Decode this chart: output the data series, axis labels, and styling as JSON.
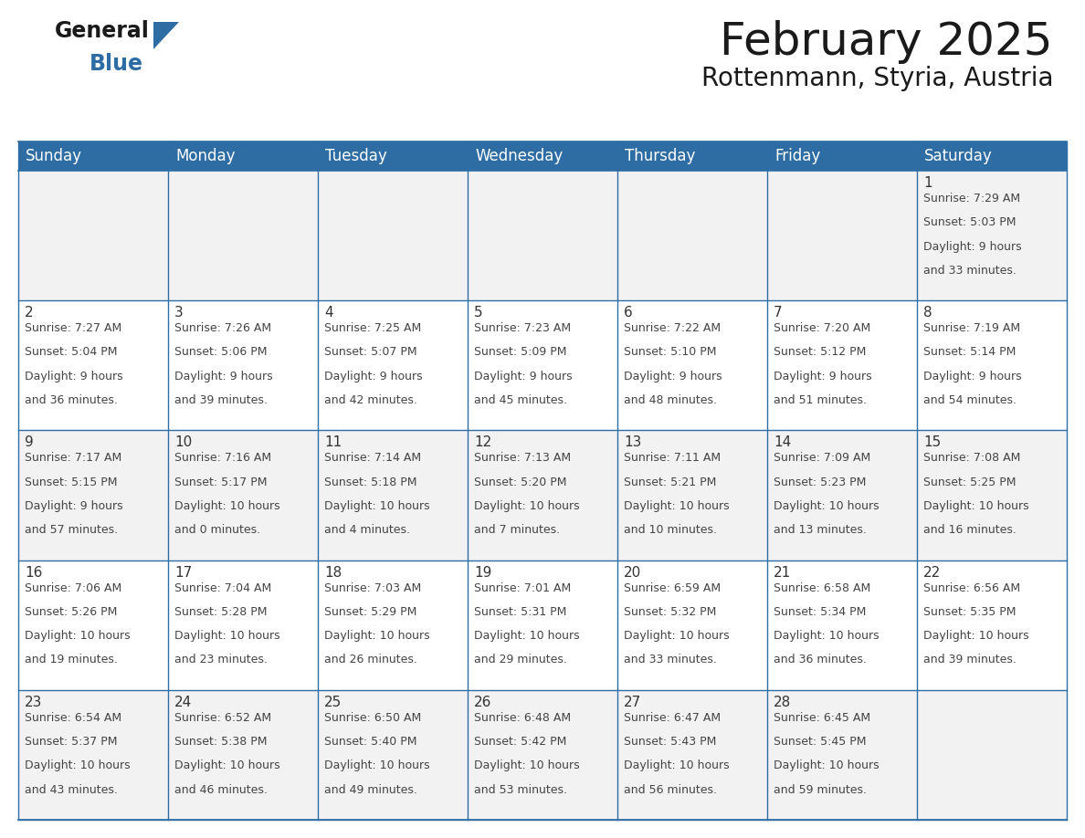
{
  "title": "February 2025",
  "subtitle": "Rottenmann, Styria, Austria",
  "header_bg": "#2E6DA4",
  "header_text_color": "#FFFFFF",
  "cell_bg_odd": "#F2F2F2",
  "cell_bg_even": "#FFFFFF",
  "day_headers": [
    "Sunday",
    "Monday",
    "Tuesday",
    "Wednesday",
    "Thursday",
    "Friday",
    "Saturday"
  ],
  "days": [
    {
      "day": 1,
      "col": 6,
      "row": 0,
      "sunrise": "7:29 AM",
      "sunset": "5:03 PM",
      "daylight_h": "9 hours",
      "daylight_m": "and 33 minutes."
    },
    {
      "day": 2,
      "col": 0,
      "row": 1,
      "sunrise": "7:27 AM",
      "sunset": "5:04 PM",
      "daylight_h": "9 hours",
      "daylight_m": "and 36 minutes."
    },
    {
      "day": 3,
      "col": 1,
      "row": 1,
      "sunrise": "7:26 AM",
      "sunset": "5:06 PM",
      "daylight_h": "9 hours",
      "daylight_m": "and 39 minutes."
    },
    {
      "day": 4,
      "col": 2,
      "row": 1,
      "sunrise": "7:25 AM",
      "sunset": "5:07 PM",
      "daylight_h": "9 hours",
      "daylight_m": "and 42 minutes."
    },
    {
      "day": 5,
      "col": 3,
      "row": 1,
      "sunrise": "7:23 AM",
      "sunset": "5:09 PM",
      "daylight_h": "9 hours",
      "daylight_m": "and 45 minutes."
    },
    {
      "day": 6,
      "col": 4,
      "row": 1,
      "sunrise": "7:22 AM",
      "sunset": "5:10 PM",
      "daylight_h": "9 hours",
      "daylight_m": "and 48 minutes."
    },
    {
      "day": 7,
      "col": 5,
      "row": 1,
      "sunrise": "7:20 AM",
      "sunset": "5:12 PM",
      "daylight_h": "9 hours",
      "daylight_m": "and 51 minutes."
    },
    {
      "day": 8,
      "col": 6,
      "row": 1,
      "sunrise": "7:19 AM",
      "sunset": "5:14 PM",
      "daylight_h": "9 hours",
      "daylight_m": "and 54 minutes."
    },
    {
      "day": 9,
      "col": 0,
      "row": 2,
      "sunrise": "7:17 AM",
      "sunset": "5:15 PM",
      "daylight_h": "9 hours",
      "daylight_m": "and 57 minutes."
    },
    {
      "day": 10,
      "col": 1,
      "row": 2,
      "sunrise": "7:16 AM",
      "sunset": "5:17 PM",
      "daylight_h": "10 hours",
      "daylight_m": "and 0 minutes."
    },
    {
      "day": 11,
      "col": 2,
      "row": 2,
      "sunrise": "7:14 AM",
      "sunset": "5:18 PM",
      "daylight_h": "10 hours",
      "daylight_m": "and 4 minutes."
    },
    {
      "day": 12,
      "col": 3,
      "row": 2,
      "sunrise": "7:13 AM",
      "sunset": "5:20 PM",
      "daylight_h": "10 hours",
      "daylight_m": "and 7 minutes."
    },
    {
      "day": 13,
      "col": 4,
      "row": 2,
      "sunrise": "7:11 AM",
      "sunset": "5:21 PM",
      "daylight_h": "10 hours",
      "daylight_m": "and 10 minutes."
    },
    {
      "day": 14,
      "col": 5,
      "row": 2,
      "sunrise": "7:09 AM",
      "sunset": "5:23 PM",
      "daylight_h": "10 hours",
      "daylight_m": "and 13 minutes."
    },
    {
      "day": 15,
      "col": 6,
      "row": 2,
      "sunrise": "7:08 AM",
      "sunset": "5:25 PM",
      "daylight_h": "10 hours",
      "daylight_m": "and 16 minutes."
    },
    {
      "day": 16,
      "col": 0,
      "row": 3,
      "sunrise": "7:06 AM",
      "sunset": "5:26 PM",
      "daylight_h": "10 hours",
      "daylight_m": "and 19 minutes."
    },
    {
      "day": 17,
      "col": 1,
      "row": 3,
      "sunrise": "7:04 AM",
      "sunset": "5:28 PM",
      "daylight_h": "10 hours",
      "daylight_m": "and 23 minutes."
    },
    {
      "day": 18,
      "col": 2,
      "row": 3,
      "sunrise": "7:03 AM",
      "sunset": "5:29 PM",
      "daylight_h": "10 hours",
      "daylight_m": "and 26 minutes."
    },
    {
      "day": 19,
      "col": 3,
      "row": 3,
      "sunrise": "7:01 AM",
      "sunset": "5:31 PM",
      "daylight_h": "10 hours",
      "daylight_m": "and 29 minutes."
    },
    {
      "day": 20,
      "col": 4,
      "row": 3,
      "sunrise": "6:59 AM",
      "sunset": "5:32 PM",
      "daylight_h": "10 hours",
      "daylight_m": "and 33 minutes."
    },
    {
      "day": 21,
      "col": 5,
      "row": 3,
      "sunrise": "6:58 AM",
      "sunset": "5:34 PM",
      "daylight_h": "10 hours",
      "daylight_m": "and 36 minutes."
    },
    {
      "day": 22,
      "col": 6,
      "row": 3,
      "sunrise": "6:56 AM",
      "sunset": "5:35 PM",
      "daylight_h": "10 hours",
      "daylight_m": "and 39 minutes."
    },
    {
      "day": 23,
      "col": 0,
      "row": 4,
      "sunrise": "6:54 AM",
      "sunset": "5:37 PM",
      "daylight_h": "10 hours",
      "daylight_m": "and 43 minutes."
    },
    {
      "day": 24,
      "col": 1,
      "row": 4,
      "sunrise": "6:52 AM",
      "sunset": "5:38 PM",
      "daylight_h": "10 hours",
      "daylight_m": "and 46 minutes."
    },
    {
      "day": 25,
      "col": 2,
      "row": 4,
      "sunrise": "6:50 AM",
      "sunset": "5:40 PM",
      "daylight_h": "10 hours",
      "daylight_m": "and 49 minutes."
    },
    {
      "day": 26,
      "col": 3,
      "row": 4,
      "sunrise": "6:48 AM",
      "sunset": "5:42 PM",
      "daylight_h": "10 hours",
      "daylight_m": "and 53 minutes."
    },
    {
      "day": 27,
      "col": 4,
      "row": 4,
      "sunrise": "6:47 AM",
      "sunset": "5:43 PM",
      "daylight_h": "10 hours",
      "daylight_m": "and 56 minutes."
    },
    {
      "day": 28,
      "col": 5,
      "row": 4,
      "sunrise": "6:45 AM",
      "sunset": "5:45 PM",
      "daylight_h": "10 hours",
      "daylight_m": "and 59 minutes."
    }
  ],
  "border_color": "#2E6DA4",
  "text_color_day_num": "#333333",
  "text_color_info": "#444444",
  "num_rows": 5,
  "title_fontsize": 36,
  "subtitle_fontsize": 20,
  "header_fontsize": 12,
  "day_num_fontsize": 11,
  "cell_fontsize": 9
}
